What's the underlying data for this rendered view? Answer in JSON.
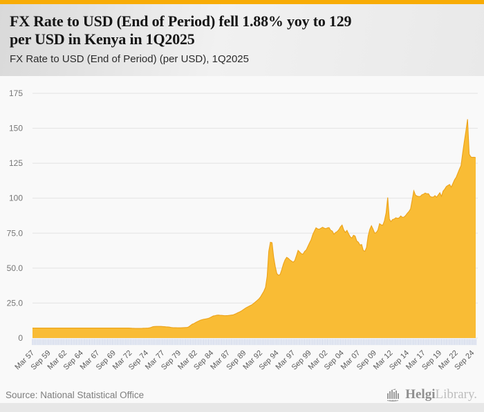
{
  "header": {
    "title_line1": "FX Rate to USD (End of Period) fell 1.88% yoy to 129",
    "title_line2": "per USD in Kenya in 1Q2025",
    "subtitle": "FX Rate to USD (End of Period) (per USD), 1Q2025"
  },
  "footer": {
    "source": "Source: National Statistical Office",
    "logo_primary": "Helgi",
    "logo_secondary": "Library."
  },
  "colors": {
    "top_bar": "#F8AC05",
    "area_fill": "#F9BC35",
    "area_edge": "#ECA219",
    "gridline": "#e3e3e3",
    "y_label": "#767676",
    "x_label": "#5a5a5a",
    "tick_comb": "#c9d2e6",
    "tick_comb_bg": "#f1f3f8"
  },
  "chart_data": {
    "type": "area",
    "series_name": "FX Rate to USD (End of Period) (per USD)",
    "country": "Kenya",
    "frequency": "quarterly",
    "x_start": "Mar 1957",
    "x_end": "Mar 2025",
    "ylim": [
      0,
      175
    ],
    "grid": true,
    "y_tick_values": [
      175,
      150,
      125,
      100,
      75,
      50,
      25,
      0
    ],
    "y_tick_labels": [
      "175",
      "150",
      "125",
      "100",
      "75.0",
      "50.0",
      "25.0",
      "0"
    ],
    "x_tick_every": 10,
    "x_tick_labels": [
      "Mar 57",
      "Sep 59",
      "Mar 62",
      "Sep 64",
      "Mar 67",
      "Sep 69",
      "Mar 72",
      "Sep 74",
      "Mar 77",
      "Sep 79",
      "Mar 82",
      "Sep 84",
      "Mar 87",
      "Sep 89",
      "Mar 92",
      "Sep 94",
      "Mar 97",
      "Sep 99",
      "Mar 02",
      "Sep 04",
      "Mar 07",
      "Sep 09",
      "Mar 12",
      "Sep 14",
      "Mar 17",
      "Sep 19",
      "Mar 22",
      "Sep 24"
    ],
    "values": [
      7.14,
      7.14,
      7.14,
      7.14,
      7.14,
      7.14,
      7.14,
      7.14,
      7.14,
      7.14,
      7.14,
      7.14,
      7.14,
      7.14,
      7.14,
      7.14,
      7.14,
      7.14,
      7.14,
      7.14,
      7.14,
      7.14,
      7.14,
      7.14,
      7.14,
      7.14,
      7.14,
      7.14,
      7.14,
      7.14,
      7.14,
      7.14,
      7.14,
      7.14,
      7.14,
      7.14,
      7.14,
      7.14,
      7.14,
      7.14,
      7.14,
      7.14,
      7.14,
      7.14,
      7.14,
      7.14,
      7.14,
      7.14,
      7.14,
      7.14,
      7.14,
      7.14,
      7.14,
      7.14,
      7.14,
      7.14,
      7.14,
      7.14,
      7.14,
      7.14,
      7.1,
      7.0,
      6.95,
      6.9,
      6.9,
      6.9,
      6.9,
      6.92,
      7.0,
      7.05,
      7.1,
      7.14,
      7.3,
      7.7,
      8.15,
      8.26,
      8.3,
      8.33,
      8.32,
      8.31,
      8.2,
      8.1,
      8.0,
      7.95,
      7.8,
      7.6,
      7.45,
      7.4,
      7.38,
      7.35,
      7.34,
      7.33,
      7.4,
      7.45,
      7.5,
      7.57,
      8.1,
      9.0,
      9.9,
      10.29,
      11.0,
      11.6,
      12.2,
      12.73,
      13.1,
      13.4,
      13.6,
      13.8,
      14.1,
      14.6,
      15.2,
      15.78,
      16.0,
      16.3,
      16.4,
      16.28,
      16.2,
      16.1,
      16.0,
      16.04,
      16.1,
      16.25,
      16.4,
      16.52,
      17.0,
      17.5,
      18.1,
      18.6,
      19.2,
      20.0,
      20.8,
      21.6,
      22.2,
      22.8,
      23.4,
      24.08,
      25.0,
      26.0,
      27.0,
      28.07,
      29.5,
      31.5,
      33.5,
      36.22,
      44.0,
      62.0,
      68.5,
      68.2,
      58.0,
      51.0,
      46.0,
      44.84,
      45.5,
      49.0,
      53.0,
      55.94,
      57.7,
      57.0,
      55.8,
      55.02,
      54.2,
      55.5,
      59.0,
      62.68,
      61.5,
      60.3,
      60.0,
      61.91,
      63.0,
      65.5,
      68.0,
      70.33,
      74.0,
      76.5,
      78.8,
      78.04,
      77.8,
      78.5,
      79.2,
      78.6,
      78.2,
      78.8,
      79.0,
      77.07,
      76.5,
      74.2,
      75.5,
      76.14,
      77.5,
      79.5,
      80.8,
      77.34,
      75.5,
      77.0,
      74.5,
      72.37,
      71.5,
      73.5,
      72.9,
      69.4,
      68.5,
      66.5,
      66.9,
      62.68,
      62.0,
      64.8,
      73.0,
      77.71,
      80.3,
      77.9,
      75.0,
      75.43,
      77.3,
      81.8,
      80.9,
      80.75,
      83.9,
      89.5,
      100.5,
      85.07,
      83.2,
      84.8,
      85.1,
      86.03,
      85.6,
      85.9,
      87.3,
      86.31,
      86.5,
      87.6,
      89.2,
      90.44,
      92.3,
      98.6,
      105.3,
      102.31,
      101.5,
      101.2,
      101.3,
      102.49,
      102.9,
      103.7,
      103.2,
      103.23,
      101.3,
      100.8,
      100.8,
      101.85,
      100.7,
      102.3,
      103.9,
      101.34,
      105.1,
      106.5,
      108.4,
      109.17,
      109.8,
      107.9,
      110.5,
      113.14,
      114.9,
      117.8,
      120.7,
      123.37,
      132.3,
      140.5,
      148.1,
      156.46,
      131.5,
      129.5,
      129.2,
      129.3,
      129.0
    ]
  }
}
